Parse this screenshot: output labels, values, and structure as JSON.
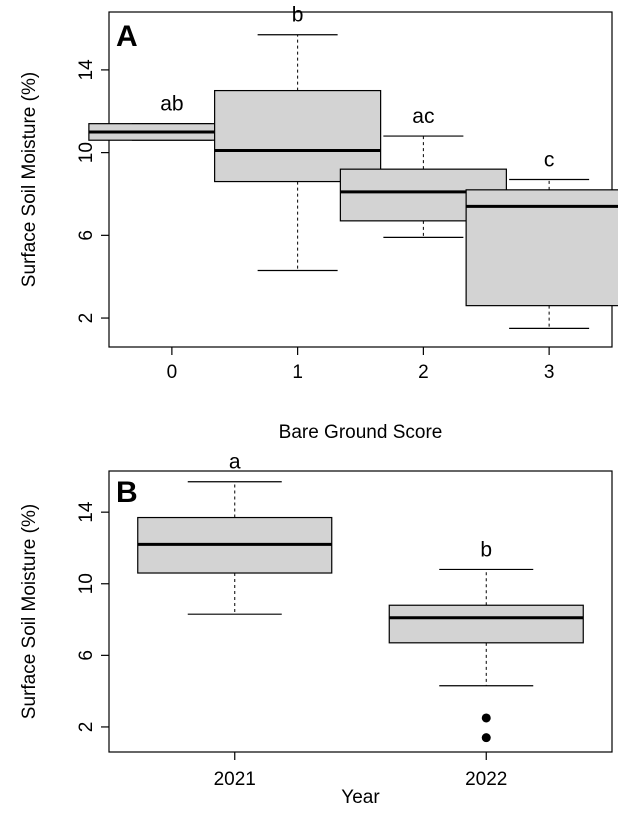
{
  "chart_data": [
    {
      "type": "boxplot",
      "panel": "A",
      "xlabel": "Bare Ground Score",
      "ylabel": "Surface Soil Moisture (%)",
      "categories": [
        "0",
        "1",
        "2",
        "3"
      ],
      "ylim": [
        0.6,
        16.8
      ],
      "yticks": [
        "2",
        "6",
        "10",
        "14"
      ],
      "grid": false,
      "boxes": [
        {
          "category": "0",
          "whisker_low": 10.6,
          "q1": 10.6,
          "median": 11.0,
          "q3": 11.4,
          "whisker_high": 11.4,
          "group_label": "ab"
        },
        {
          "category": "1",
          "whisker_low": 4.3,
          "q1": 8.6,
          "median": 10.1,
          "q3": 13.0,
          "whisker_high": 15.7,
          "group_label": "b"
        },
        {
          "category": "2",
          "whisker_low": 5.9,
          "q1": 6.7,
          "median": 8.1,
          "q3": 9.2,
          "whisker_high": 10.8,
          "group_label": "ac"
        },
        {
          "category": "3",
          "whisker_low": 1.5,
          "q1": 2.6,
          "median": 7.4,
          "q3": 8.2,
          "whisker_high": 8.7,
          "group_label": "c"
        }
      ],
      "outliers": []
    },
    {
      "type": "boxplot",
      "panel": "B",
      "xlabel": "Year",
      "ylabel": "Surface Soil Moisture (%)",
      "categories": [
        "2021",
        "2022"
      ],
      "ylim": [
        0.6,
        16.3
      ],
      "yticks": [
        "2",
        "6",
        "10",
        "14"
      ],
      "grid": false,
      "boxes": [
        {
          "category": "2021",
          "whisker_low": 8.3,
          "q1": 10.6,
          "median": 12.2,
          "q3": 13.7,
          "whisker_high": 15.7,
          "group_label": "a"
        },
        {
          "category": "2022",
          "whisker_low": 4.3,
          "q1": 6.7,
          "median": 8.1,
          "q3": 8.8,
          "whisker_high": 10.8,
          "group_label": "b"
        }
      ],
      "outliers": [
        {
          "category": "2022",
          "value": 2.5
        },
        {
          "category": "2022",
          "value": 1.4
        }
      ]
    }
  ]
}
